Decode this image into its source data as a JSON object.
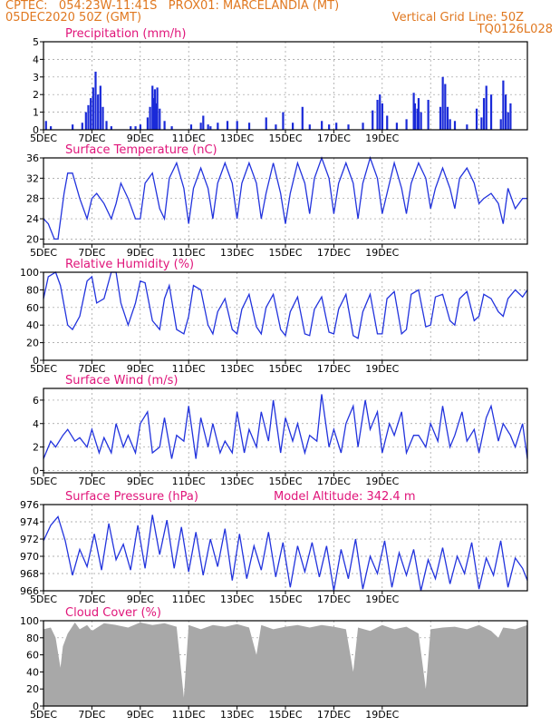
{
  "header": {
    "line1": "CPTEC:   054:23W-11:41S   PROX01: MARCELANDIA (MT)",
    "line2": "05DEC2020 50Z (GMT)",
    "grid_note": "Vertical Grid Line: 50Z",
    "code": "TQ0126L028"
  },
  "colors": {
    "line": "#2233dd",
    "bars": "#1a2ad8",
    "cloud": "#a8a8a8",
    "title": "#e0157a",
    "header": "#e07820"
  },
  "x_ticks": [
    "5DEC",
    "7DEC",
    "9DEC",
    "11DEC",
    "13DEC",
    "15DEC",
    "17DEC",
    "19DEC"
  ],
  "chart_data": [
    {
      "type": "bar",
      "title": "Precipitation (mm/h)",
      "x_unit": "days since 5DEC 00Z",
      "ylim": [
        0,
        5
      ],
      "yticks": [
        0,
        1,
        2,
        3,
        4,
        5
      ],
      "x": [
        0.1,
        0.3,
        1.2,
        1.6,
        1.75,
        1.85,
        1.95,
        2.05,
        2.15,
        2.25,
        2.35,
        2.45,
        2.6,
        2.8,
        3.6,
        3.8,
        4.0,
        4.3,
        4.4,
        4.5,
        4.55,
        4.6,
        4.65,
        4.7,
        4.8,
        5.0,
        5.3,
        6.1,
        6.5,
        6.6,
        6.8,
        6.9,
        7.2,
        7.6,
        8.0,
        8.5,
        9.2,
        9.6,
        9.9,
        10.3,
        10.7,
        11.0,
        11.5,
        11.8,
        12.1,
        12.6,
        13.2,
        13.6,
        13.8,
        13.9,
        14.0,
        14.2,
        14.6,
        15.0,
        15.3,
        15.35,
        15.45,
        15.5,
        15.6,
        15.9,
        16.4,
        16.5,
        16.6,
        16.7,
        16.8,
        17.0,
        17.5,
        17.9,
        18.1,
        18.2,
        18.3,
        18.5,
        18.9,
        19.0,
        19.1,
        19.2,
        19.3
      ],
      "values": [
        0.5,
        0.2,
        0.3,
        0.4,
        1.0,
        1.4,
        1.8,
        2.4,
        3.3,
        2.0,
        2.5,
        1.3,
        0.5,
        0.2,
        0.2,
        0.2,
        0.3,
        0.7,
        1.3,
        2.5,
        1.8,
        2.3,
        1.5,
        2.4,
        1.2,
        0.5,
        0.2,
        0.3,
        0.4,
        0.8,
        0.3,
        0.2,
        0.4,
        0.5,
        0.5,
        0.4,
        0.7,
        0.3,
        1.0,
        0.4,
        1.3,
        0.3,
        0.5,
        0.3,
        0.4,
        0.3,
        0.4,
        1.1,
        1.7,
        2.0,
        1.5,
        0.8,
        0.4,
        0.6,
        2.1,
        1.5,
        1.2,
        1.8,
        1.0,
        1.7,
        1.3,
        3.0,
        2.6,
        1.3,
        0.6,
        0.5,
        0.3,
        1.2,
        0.7,
        1.8,
        2.5,
        2.0,
        0.6,
        2.8,
        2.0,
        1.0,
        1.5
      ]
    },
    {
      "type": "line",
      "title": "Surface Temperature (nC)",
      "ylim": [
        19,
        36
      ],
      "yticks": [
        20,
        24,
        28,
        32,
        36
      ],
      "x": [
        0,
        0.2,
        0.45,
        0.6,
        0.85,
        1.0,
        1.2,
        1.5,
        1.8,
        2.0,
        2.2,
        2.5,
        2.8,
        3.0,
        3.2,
        3.5,
        3.8,
        4.0,
        4.2,
        4.5,
        4.8,
        5.0,
        5.2,
        5.5,
        5.8,
        6.0,
        6.2,
        6.5,
        6.8,
        7.0,
        7.2,
        7.5,
        7.8,
        8.0,
        8.2,
        8.5,
        8.8,
        9.0,
        9.2,
        9.5,
        9.8,
        10.0,
        10.2,
        10.5,
        10.8,
        11.0,
        11.2,
        11.5,
        11.8,
        12.0,
        12.2,
        12.5,
        12.8,
        13.0,
        13.2,
        13.5,
        13.8,
        14.0,
        14.2,
        14.5,
        14.8,
        15.0,
        15.2,
        15.5,
        15.8,
        16.0,
        16.2,
        16.5,
        16.8,
        17.0,
        17.2,
        17.5,
        17.8,
        18.0,
        18.2,
        18.5,
        18.8,
        19.0,
        19.2,
        19.5,
        19.8,
        20.0
      ],
      "values": [
        24,
        23,
        20,
        20,
        29,
        33,
        33,
        28,
        24,
        28,
        29,
        27,
        24,
        27,
        31,
        28,
        24,
        24,
        31,
        33,
        26,
        24,
        32,
        35,
        30,
        23,
        30,
        34,
        30,
        24,
        31,
        35,
        31,
        24,
        31,
        35,
        31,
        24,
        29,
        35,
        29,
        23,
        29,
        35,
        31,
        25,
        32,
        36,
        32,
        25,
        31,
        35,
        31,
        24,
        31,
        36,
        32,
        25,
        29,
        35,
        30,
        25,
        31,
        35,
        32,
        26,
        30,
        34,
        30,
        26,
        32,
        34,
        31,
        27,
        28,
        29,
        27,
        23,
        30,
        26,
        28,
        28
      ]
    },
    {
      "type": "line",
      "title": "Relative Humidity (%)",
      "ylim": [
        0,
        100
      ],
      "yticks": [
        0,
        20,
        40,
        60,
        80,
        100
      ],
      "x": [
        0,
        0.2,
        0.5,
        0.7,
        1.0,
        1.2,
        1.5,
        1.8,
        2.0,
        2.2,
        2.5,
        2.8,
        3.0,
        3.2,
        3.5,
        3.8,
        4.0,
        4.2,
        4.5,
        4.8,
        5.0,
        5.2,
        5.5,
        5.8,
        6.0,
        6.2,
        6.5,
        6.8,
        7.0,
        7.2,
        7.5,
        7.8,
        8.0,
        8.2,
        8.5,
        8.8,
        9.0,
        9.2,
        9.5,
        9.8,
        10.0,
        10.2,
        10.5,
        10.8,
        11.0,
        11.2,
        11.5,
        11.8,
        12.0,
        12.2,
        12.5,
        12.8,
        13.0,
        13.2,
        13.5,
        13.8,
        14.0,
        14.2,
        14.5,
        14.8,
        15.0,
        15.2,
        15.5,
        15.8,
        16.0,
        16.2,
        16.5,
        16.8,
        17.0,
        17.2,
        17.5,
        17.8,
        18.0,
        18.2,
        18.5,
        18.8,
        19.0,
        19.2,
        19.5,
        19.8,
        20.0
      ],
      "values": [
        70,
        95,
        100,
        85,
        40,
        35,
        50,
        90,
        95,
        65,
        70,
        100,
        100,
        65,
        40,
        65,
        90,
        88,
        45,
        35,
        70,
        85,
        35,
        30,
        50,
        85,
        80,
        40,
        30,
        55,
        70,
        35,
        30,
        58,
        75,
        38,
        30,
        60,
        75,
        35,
        28,
        55,
        72,
        30,
        28,
        58,
        72,
        32,
        30,
        58,
        75,
        28,
        25,
        55,
        75,
        30,
        30,
        70,
        78,
        30,
        35,
        75,
        80,
        38,
        40,
        72,
        75,
        45,
        40,
        70,
        78,
        45,
        50,
        75,
        70,
        55,
        50,
        70,
        80,
        72,
        80
      ]
    },
    {
      "type": "line",
      "title": "Surface Wind (m/s)",
      "ylim": [
        -0.2,
        7
      ],
      "yticks": [
        0,
        2,
        4,
        6
      ],
      "x": [
        0,
        0.3,
        0.5,
        0.8,
        1.0,
        1.3,
        1.5,
        1.8,
        2.0,
        2.3,
        2.5,
        2.8,
        3.0,
        3.3,
        3.5,
        3.8,
        4.0,
        4.3,
        4.5,
        4.8,
        5.0,
        5.3,
        5.5,
        5.8,
        6.0,
        6.3,
        6.5,
        6.8,
        7.0,
        7.3,
        7.5,
        7.8,
        8.0,
        8.3,
        8.5,
        8.8,
        9.0,
        9.3,
        9.5,
        9.8,
        10.0,
        10.3,
        10.5,
        10.8,
        11.0,
        11.3,
        11.5,
        11.8,
        12.0,
        12.3,
        12.5,
        12.8,
        13.0,
        13.3,
        13.5,
        13.8,
        14.0,
        14.3,
        14.5,
        14.8,
        15.0,
        15.3,
        15.5,
        15.8,
        16.0,
        16.3,
        16.5,
        16.8,
        17.0,
        17.3,
        17.5,
        17.8,
        18.0,
        18.3,
        18.5,
        18.8,
        19.0,
        19.3,
        19.5,
        19.8,
        20.0
      ],
      "values": [
        1.0,
        2.5,
        2.0,
        3.0,
        3.5,
        2.5,
        2.8,
        2.0,
        3.5,
        1.5,
        2.8,
        1.5,
        4.0,
        2.0,
        3.0,
        1.5,
        4.0,
        5.0,
        1.5,
        2.0,
        4.5,
        1.0,
        3.0,
        2.5,
        5.5,
        1.0,
        4.5,
        2.0,
        4.0,
        1.5,
        2.5,
        1.5,
        5.0,
        1.5,
        3.5,
        2.0,
        5.0,
        2.5,
        6.0,
        1.5,
        4.5,
        2.5,
        4.0,
        1.5,
        3.0,
        2.5,
        6.5,
        2.0,
        3.5,
        1.5,
        4.0,
        5.5,
        2.0,
        6.0,
        3.5,
        5.0,
        1.5,
        4.0,
        3.0,
        5.0,
        1.5,
        3.0,
        3.0,
        2.0,
        4.0,
        2.5,
        5.5,
        2.0,
        3.0,
        5.0,
        2.5,
        3.5,
        1.5,
        4.5,
        5.5,
        2.5,
        4.0,
        3.0,
        2.0,
        4.0,
        1.0
      ]
    },
    {
      "type": "line",
      "title": "Surface Pressure (hPa)",
      "annotation": "Model Altitude: 342.4 m",
      "ylim": [
        966,
        976
      ],
      "yticks": [
        966,
        968,
        970,
        972,
        974,
        976
      ],
      "x": [
        0,
        0.3,
        0.6,
        0.9,
        1.2,
        1.5,
        1.8,
        2.1,
        2.4,
        2.7,
        3.0,
        3.3,
        3.6,
        3.9,
        4.2,
        4.5,
        4.8,
        5.1,
        5.4,
        5.7,
        6.0,
        6.3,
        6.6,
        6.9,
        7.2,
        7.5,
        7.8,
        8.1,
        8.4,
        8.7,
        9.0,
        9.3,
        9.6,
        9.9,
        10.2,
        10.5,
        10.8,
        11.1,
        11.4,
        11.7,
        12.0,
        12.3,
        12.6,
        12.9,
        13.2,
        13.5,
        13.8,
        14.1,
        14.4,
        14.7,
        15.0,
        15.3,
        15.6,
        15.9,
        16.2,
        16.5,
        16.8,
        17.1,
        17.4,
        17.7,
        18.0,
        18.3,
        18.6,
        18.9,
        19.2,
        19.5,
        19.8,
        20.0
      ],
      "values": [
        971.8,
        973.6,
        974.6,
        971.8,
        967.8,
        970.8,
        968.8,
        972.6,
        968.4,
        973.8,
        969.6,
        971.4,
        968.4,
        973.6,
        968.6,
        974.8,
        970.2,
        974.2,
        968.6,
        973.4,
        968.2,
        972.8,
        967.8,
        972.0,
        968.8,
        973.2,
        967.2,
        972.6,
        967.4,
        971.2,
        968.4,
        972.8,
        967.6,
        971.6,
        966.4,
        971.2,
        968.2,
        971.6,
        967.6,
        971.2,
        966.0,
        970.8,
        967.4,
        972.0,
        966.2,
        970.0,
        968.0,
        971.8,
        966.4,
        970.4,
        967.8,
        970.8,
        966.0,
        969.6,
        967.4,
        971.0,
        966.8,
        970.0,
        968.0,
        971.6,
        966.2,
        969.8,
        967.8,
        971.8,
        966.4,
        969.8,
        968.6,
        967.2
      ]
    },
    {
      "type": "area",
      "title": "Cloud Cover (%)",
      "ylim": [
        0,
        100
      ],
      "yticks": [
        0,
        20,
        40,
        60,
        80,
        100
      ],
      "x": [
        0,
        0.3,
        0.5,
        0.7,
        0.8,
        1.0,
        1.3,
        1.5,
        1.8,
        2.0,
        2.5,
        3.0,
        3.5,
        4.0,
        4.5,
        5.0,
        5.5,
        5.8,
        6.0,
        6.5,
        7.0,
        7.5,
        8.0,
        8.5,
        8.8,
        9.0,
        9.5,
        10.0,
        10.5,
        11.0,
        11.5,
        12.0,
        12.5,
        12.8,
        13.0,
        13.5,
        14.0,
        14.5,
        15.0,
        15.5,
        15.8,
        16.0,
        16.5,
        17.0,
        17.5,
        18.0,
        18.5,
        18.8,
        19.0,
        19.5,
        20.0
      ],
      "values": [
        90,
        92,
        80,
        45,
        70,
        85,
        98,
        90,
        95,
        88,
        97,
        95,
        92,
        98,
        95,
        97,
        93,
        10,
        95,
        90,
        95,
        93,
        96,
        92,
        60,
        95,
        90,
        93,
        95,
        92,
        95,
        93,
        90,
        40,
        92,
        88,
        95,
        90,
        93,
        85,
        20,
        90,
        92,
        93,
        90,
        95,
        88,
        80,
        92,
        90,
        95
      ]
    }
  ]
}
